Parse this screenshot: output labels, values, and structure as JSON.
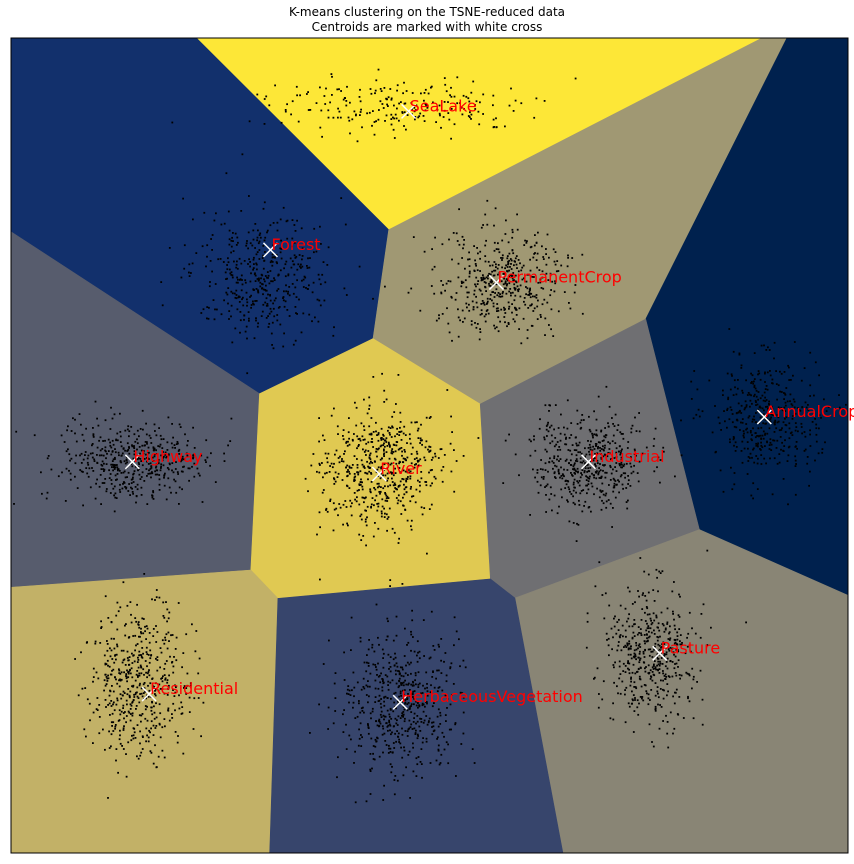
{
  "chart_data": {
    "type": "scatter",
    "title": "K-means clustering on the TSNE-reduced data",
    "subtitle": "Centroids are marked with white cross",
    "xlabel": "",
    "ylabel": "",
    "xticks": [],
    "yticks": [],
    "xlim": [
      -100,
      100
    ],
    "ylim": [
      -100,
      100
    ],
    "grid": false,
    "background": "Voronoi decision regions of the 10 clusters (cividis colormap)",
    "point_color": "#000000",
    "centroid_marker": "white x",
    "label_color": "#ff0000",
    "clusters": [
      {
        "name": "SeaLake",
        "centroid": [
          -5.0,
          82.0
        ],
        "region_color": "#fde737"
      },
      {
        "name": "Forest",
        "centroid": [
          -38.0,
          48.0
        ],
        "region_color": "#12306c"
      },
      {
        "name": "PermanentCrop",
        "centroid": [
          16.0,
          40.0
        ],
        "region_color": "#a09873"
      },
      {
        "name": "AnnualCrop",
        "centroid": [
          80.0,
          7.0
        ],
        "region_color": "#00214e"
      },
      {
        "name": "Highway",
        "centroid": [
          -71.0,
          -4.0
        ],
        "region_color": "#575c6d"
      },
      {
        "name": "River",
        "centroid": [
          -12.0,
          -7.0
        ],
        "region_color": "#e0c952"
      },
      {
        "name": "Industrial",
        "centroid": [
          38.0,
          -4.0
        ],
        "region_color": "#6f6f72"
      },
      {
        "name": "Pasture",
        "centroid": [
          55.0,
          -51.0
        ],
        "region_color": "#898575"
      },
      {
        "name": "Residential",
        "centroid": [
          -67.0,
          -61.0
        ],
        "region_color": "#c2b167"
      },
      {
        "name": "HerbaceousVegetation",
        "centroid": [
          -7.0,
          -63.0
        ],
        "region_color": "#37456c"
      }
    ]
  }
}
